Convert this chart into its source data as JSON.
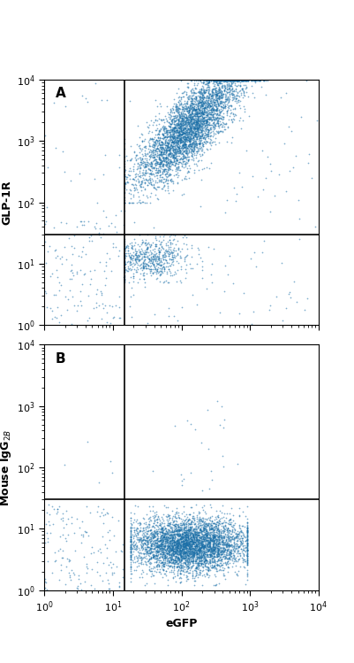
{
  "xlim": [
    1,
    10000
  ],
  "ylim": [
    1,
    10000
  ],
  "xlabel": "eGFP",
  "ylabel_A": "GLP-1R",
  "ylabel_B": "Mouse IgG$_{2B}$",
  "label_A": "A",
  "label_B": "B",
  "dot_color": "#1a6fa8",
  "dot_alpha": 0.55,
  "dot_size": 1.5,
  "gate_x": 15,
  "gate_y_A": 30,
  "gate_y_B": 30,
  "background": "#ffffff",
  "seed": 1234
}
